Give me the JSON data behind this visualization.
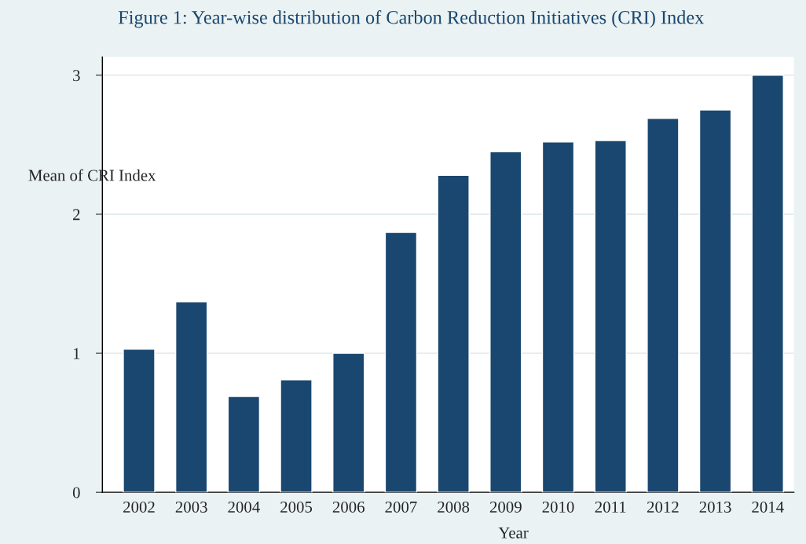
{
  "chart_data": {
    "type": "bar",
    "title": "Figure 1: Year-wise distribution of Carbon Reduction Initiatives (CRI) Index",
    "xlabel": "Year",
    "ylabel": "Mean of CRI Index",
    "categories": [
      "2002",
      "2003",
      "2004",
      "2005",
      "2006",
      "2007",
      "2008",
      "2009",
      "2010",
      "2011",
      "2012",
      "2013",
      "2014"
    ],
    "values": [
      1.03,
      1.37,
      0.69,
      0.81,
      1.0,
      1.87,
      2.28,
      2.45,
      2.52,
      2.53,
      2.69,
      2.75,
      3.0
    ],
    "color": "#1a476f",
    "ylim": [
      0,
      3.13
    ],
    "yticks": [
      0,
      1,
      2,
      3
    ],
    "grid": "y",
    "legend": false
  }
}
